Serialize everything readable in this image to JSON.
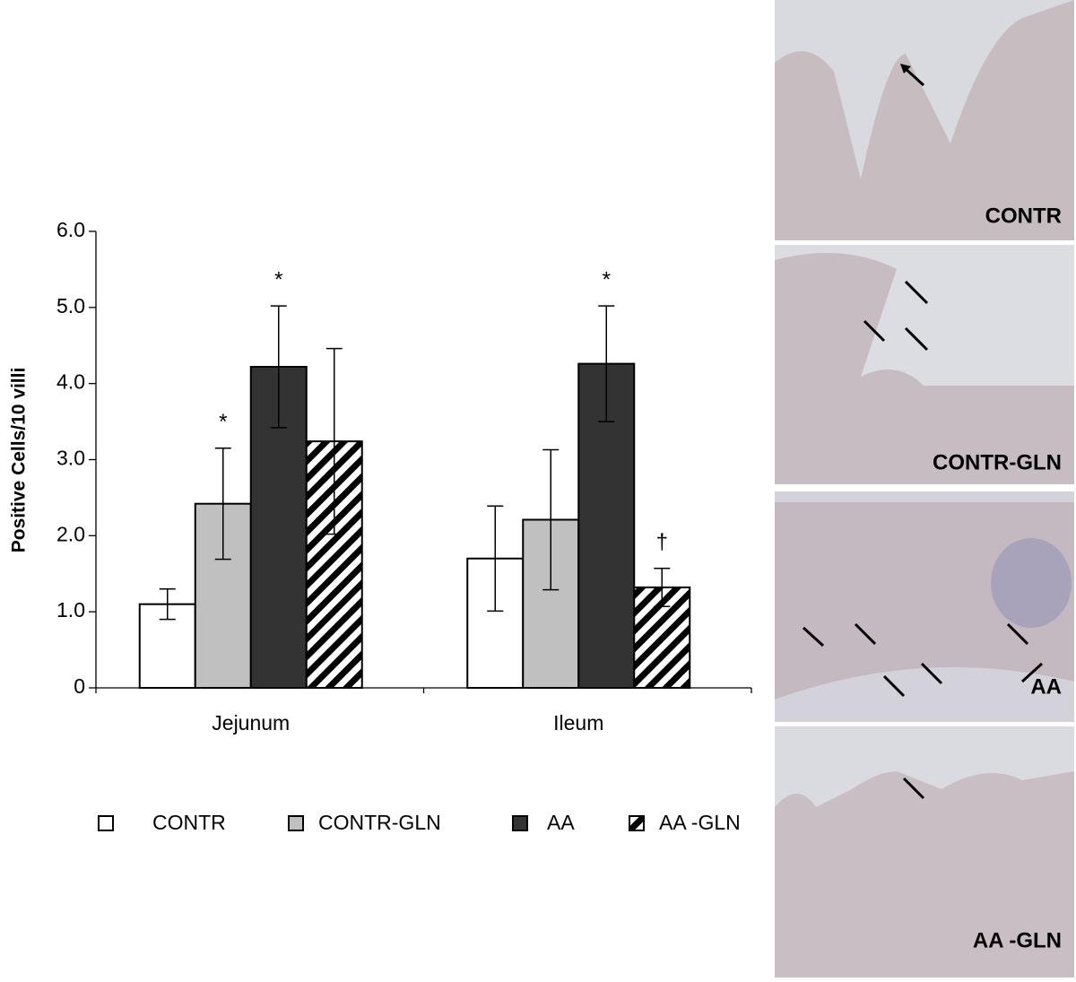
{
  "chart_data": {
    "type": "bar",
    "y_label": "Positive Cells/10 villi",
    "categories": [
      "Jejunum",
      "Ileum"
    ],
    "series": [
      {
        "name": "CONTR",
        "color": "#ffffff",
        "values": [
          1.1,
          1.7
        ],
        "errors": [
          0.2,
          0.69
        ],
        "annotations": [
          null,
          null
        ]
      },
      {
        "name": "CONTR-GLN",
        "color": "#c0c0c0",
        "values": [
          2.42,
          2.21
        ],
        "errors": [
          0.73,
          0.92
        ],
        "annotations": [
          "*",
          null
        ]
      },
      {
        "name": "AA",
        "color": "#333333",
        "values": [
          4.22,
          4.26
        ],
        "errors": [
          0.8,
          0.76
        ],
        "annotations": [
          "*",
          "*"
        ]
      },
      {
        "name": "AA -GLN",
        "color": "#000000",
        "pattern": "diagonal",
        "values": [
          3.24,
          1.32
        ],
        "errors": [
          1.22,
          0.25
        ],
        "annotations": [
          null,
          "†"
        ]
      }
    ],
    "ylim": [
      0,
      6
    ],
    "yticks": [
      0,
      {
        "value": 1,
        "label": "1.0"
      },
      {
        "value": 2,
        "label": "2.0"
      },
      {
        "value": 3,
        "label": "3.0"
      },
      {
        "value": 4,
        "label": "4.0"
      },
      {
        "value": 5,
        "label": "5.0"
      },
      {
        "value": 6,
        "label": "6.0"
      }
    ],
    "grid": false
  },
  "micrographs": {
    "labels": [
      "CONTR",
      "CONTR-GLN",
      "AA",
      "AA -GLN"
    ]
  }
}
